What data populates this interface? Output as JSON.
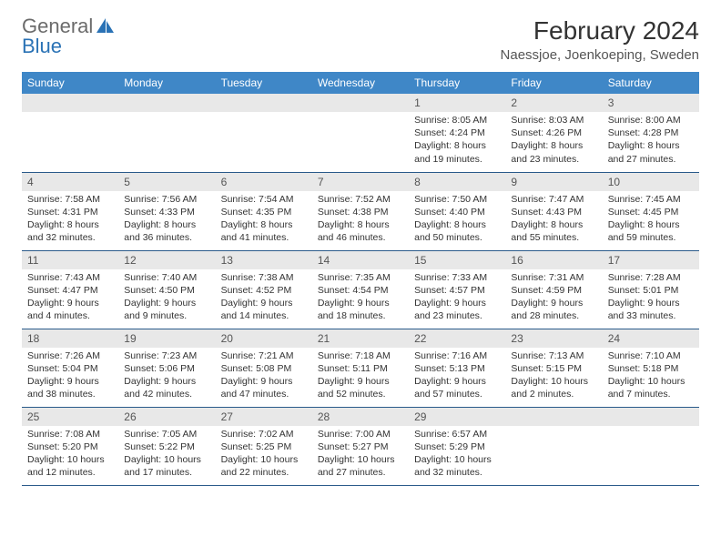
{
  "brand": {
    "text1": "General",
    "text2": "Blue"
  },
  "title": "February 2024",
  "location": "Naessjoe, Joenkoeping, Sweden",
  "colors": {
    "header_bg": "#3f87c7",
    "header_text": "#ffffff",
    "daynum_bg": "#e8e8e8",
    "row_border": "#2a5a8a",
    "brand_gray": "#6b6b6b",
    "brand_blue": "#2a72b5"
  },
  "dayNames": [
    "Sunday",
    "Monday",
    "Tuesday",
    "Wednesday",
    "Thursday",
    "Friday",
    "Saturday"
  ],
  "grid": [
    [
      {
        "n": "",
        "lines": []
      },
      {
        "n": "",
        "lines": []
      },
      {
        "n": "",
        "lines": []
      },
      {
        "n": "",
        "lines": []
      },
      {
        "n": "1",
        "lines": [
          "Sunrise: 8:05 AM",
          "Sunset: 4:24 PM",
          "Daylight: 8 hours",
          "and 19 minutes."
        ]
      },
      {
        "n": "2",
        "lines": [
          "Sunrise: 8:03 AM",
          "Sunset: 4:26 PM",
          "Daylight: 8 hours",
          "and 23 minutes."
        ]
      },
      {
        "n": "3",
        "lines": [
          "Sunrise: 8:00 AM",
          "Sunset: 4:28 PM",
          "Daylight: 8 hours",
          "and 27 minutes."
        ]
      }
    ],
    [
      {
        "n": "4",
        "lines": [
          "Sunrise: 7:58 AM",
          "Sunset: 4:31 PM",
          "Daylight: 8 hours",
          "and 32 minutes."
        ]
      },
      {
        "n": "5",
        "lines": [
          "Sunrise: 7:56 AM",
          "Sunset: 4:33 PM",
          "Daylight: 8 hours",
          "and 36 minutes."
        ]
      },
      {
        "n": "6",
        "lines": [
          "Sunrise: 7:54 AM",
          "Sunset: 4:35 PM",
          "Daylight: 8 hours",
          "and 41 minutes."
        ]
      },
      {
        "n": "7",
        "lines": [
          "Sunrise: 7:52 AM",
          "Sunset: 4:38 PM",
          "Daylight: 8 hours",
          "and 46 minutes."
        ]
      },
      {
        "n": "8",
        "lines": [
          "Sunrise: 7:50 AM",
          "Sunset: 4:40 PM",
          "Daylight: 8 hours",
          "and 50 minutes."
        ]
      },
      {
        "n": "9",
        "lines": [
          "Sunrise: 7:47 AM",
          "Sunset: 4:43 PM",
          "Daylight: 8 hours",
          "and 55 minutes."
        ]
      },
      {
        "n": "10",
        "lines": [
          "Sunrise: 7:45 AM",
          "Sunset: 4:45 PM",
          "Daylight: 8 hours",
          "and 59 minutes."
        ]
      }
    ],
    [
      {
        "n": "11",
        "lines": [
          "Sunrise: 7:43 AM",
          "Sunset: 4:47 PM",
          "Daylight: 9 hours",
          "and 4 minutes."
        ]
      },
      {
        "n": "12",
        "lines": [
          "Sunrise: 7:40 AM",
          "Sunset: 4:50 PM",
          "Daylight: 9 hours",
          "and 9 minutes."
        ]
      },
      {
        "n": "13",
        "lines": [
          "Sunrise: 7:38 AM",
          "Sunset: 4:52 PM",
          "Daylight: 9 hours",
          "and 14 minutes."
        ]
      },
      {
        "n": "14",
        "lines": [
          "Sunrise: 7:35 AM",
          "Sunset: 4:54 PM",
          "Daylight: 9 hours",
          "and 18 minutes."
        ]
      },
      {
        "n": "15",
        "lines": [
          "Sunrise: 7:33 AM",
          "Sunset: 4:57 PM",
          "Daylight: 9 hours",
          "and 23 minutes."
        ]
      },
      {
        "n": "16",
        "lines": [
          "Sunrise: 7:31 AM",
          "Sunset: 4:59 PM",
          "Daylight: 9 hours",
          "and 28 minutes."
        ]
      },
      {
        "n": "17",
        "lines": [
          "Sunrise: 7:28 AM",
          "Sunset: 5:01 PM",
          "Daylight: 9 hours",
          "and 33 minutes."
        ]
      }
    ],
    [
      {
        "n": "18",
        "lines": [
          "Sunrise: 7:26 AM",
          "Sunset: 5:04 PM",
          "Daylight: 9 hours",
          "and 38 minutes."
        ]
      },
      {
        "n": "19",
        "lines": [
          "Sunrise: 7:23 AM",
          "Sunset: 5:06 PM",
          "Daylight: 9 hours",
          "and 42 minutes."
        ]
      },
      {
        "n": "20",
        "lines": [
          "Sunrise: 7:21 AM",
          "Sunset: 5:08 PM",
          "Daylight: 9 hours",
          "and 47 minutes."
        ]
      },
      {
        "n": "21",
        "lines": [
          "Sunrise: 7:18 AM",
          "Sunset: 5:11 PM",
          "Daylight: 9 hours",
          "and 52 minutes."
        ]
      },
      {
        "n": "22",
        "lines": [
          "Sunrise: 7:16 AM",
          "Sunset: 5:13 PM",
          "Daylight: 9 hours",
          "and 57 minutes."
        ]
      },
      {
        "n": "23",
        "lines": [
          "Sunrise: 7:13 AM",
          "Sunset: 5:15 PM",
          "Daylight: 10 hours",
          "and 2 minutes."
        ]
      },
      {
        "n": "24",
        "lines": [
          "Sunrise: 7:10 AM",
          "Sunset: 5:18 PM",
          "Daylight: 10 hours",
          "and 7 minutes."
        ]
      }
    ],
    [
      {
        "n": "25",
        "lines": [
          "Sunrise: 7:08 AM",
          "Sunset: 5:20 PM",
          "Daylight: 10 hours",
          "and 12 minutes."
        ]
      },
      {
        "n": "26",
        "lines": [
          "Sunrise: 7:05 AM",
          "Sunset: 5:22 PM",
          "Daylight: 10 hours",
          "and 17 minutes."
        ]
      },
      {
        "n": "27",
        "lines": [
          "Sunrise: 7:02 AM",
          "Sunset: 5:25 PM",
          "Daylight: 10 hours",
          "and 22 minutes."
        ]
      },
      {
        "n": "28",
        "lines": [
          "Sunrise: 7:00 AM",
          "Sunset: 5:27 PM",
          "Daylight: 10 hours",
          "and 27 minutes."
        ]
      },
      {
        "n": "29",
        "lines": [
          "Sunrise: 6:57 AM",
          "Sunset: 5:29 PM",
          "Daylight: 10 hours",
          "and 32 minutes."
        ]
      },
      {
        "n": "",
        "lines": []
      },
      {
        "n": "",
        "lines": []
      }
    ]
  ]
}
